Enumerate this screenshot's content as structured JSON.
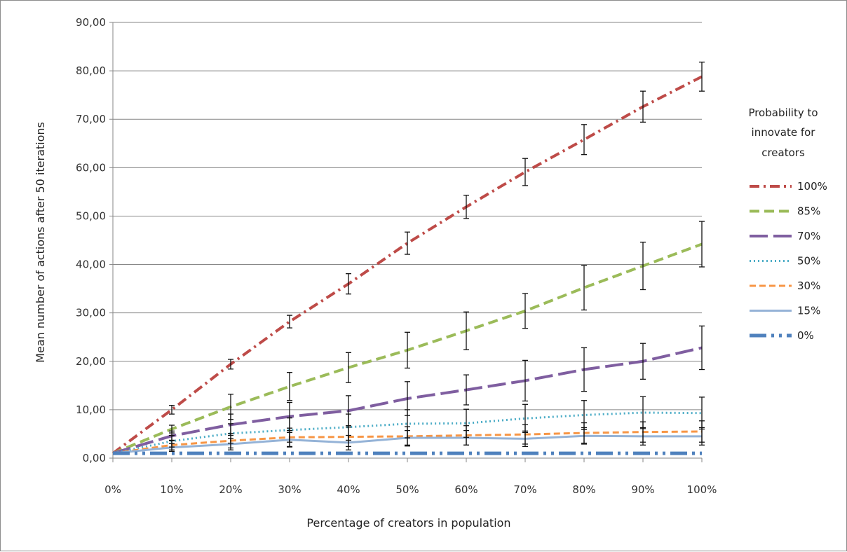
{
  "chart_data": {
    "type": "line",
    "title": "",
    "xlabel": "Percentage of creators in population",
    "ylabel": "Mean number of  actions after  50 iterations",
    "categories": [
      "0%",
      "10%",
      "20%",
      "30%",
      "40%",
      "50%",
      "60%",
      "70%",
      "80%",
      "90%",
      "100%"
    ],
    "ylim": [
      0,
      90
    ],
    "yticks": [
      "0,00",
      "10,00",
      "20,00",
      "30,00",
      "40,00",
      "50,00",
      "60,00",
      "70,00",
      "80,00",
      "90,00"
    ],
    "grid": "horizontal",
    "legend": {
      "title_lines": [
        "Probability to",
        "innovate for",
        "creators"
      ],
      "placement": "right"
    },
    "series": [
      {
        "name": "100%",
        "color": "#be4b48",
        "dash": "14,6,3,6",
        "width": 4,
        "values": [
          1.0,
          10.0,
          19.4,
          28.2,
          36.0,
          44.4,
          51.9,
          59.1,
          65.8,
          72.6,
          78.8
        ],
        "errors": [
          0,
          0.9,
          1.0,
          1.3,
          2.1,
          2.3,
          2.4,
          2.8,
          3.1,
          3.2,
          3.0
        ]
      },
      {
        "name": "85%",
        "color": "#9bbb59",
        "dash": "14,7",
        "width": 4,
        "values": [
          1.0,
          6.0,
          10.6,
          14.8,
          18.7,
          22.3,
          26.3,
          30.4,
          35.2,
          39.7,
          44.2
        ],
        "errors": [
          0,
          0.8,
          2.6,
          2.9,
          3.1,
          3.7,
          3.9,
          3.6,
          4.6,
          4.9,
          4.7
        ]
      },
      {
        "name": "70%",
        "color": "#7f5ea0",
        "dash": "26,8",
        "width": 4,
        "values": [
          1.0,
          4.6,
          6.9,
          8.6,
          9.8,
          12.3,
          14.1,
          16.0,
          18.3,
          20.0,
          22.8
        ],
        "errors": [
          0,
          1.0,
          2.2,
          2.9,
          3.1,
          3.5,
          3.1,
          4.2,
          4.5,
          3.7,
          4.5
        ]
      },
      {
        "name": "50%",
        "color": "#4bacc6",
        "dash": "2,4",
        "width": 3,
        "values": [
          1.0,
          3.5,
          5.1,
          5.8,
          6.4,
          7.1,
          7.2,
          8.2,
          8.9,
          9.4,
          9.3
        ],
        "errors": [
          0,
          1.2,
          2.0,
          2.5,
          2.7,
          2.9,
          2.9,
          2.9,
          3.0,
          3.3,
          3.3
        ]
      },
      {
        "name": "30%",
        "color": "#f79646",
        "dash": "9,5",
        "width": 3,
        "values": [
          1.0,
          2.7,
          3.6,
          4.3,
          4.4,
          4.5,
          4.7,
          4.9,
          5.2,
          5.4,
          5.5
        ],
        "errors": [
          0,
          1.0,
          1.5,
          1.9,
          2.0,
          2.0,
          2.0,
          2.0,
          2.1,
          2.1,
          2.2
        ]
      },
      {
        "name": "15%",
        "color": "#95b3d7",
        "dash": "",
        "width": 3,
        "values": [
          1.0,
          2.2,
          2.9,
          3.8,
          3.2,
          4.2,
          4.2,
          4.0,
          4.6,
          4.5,
          4.5
        ],
        "errors": [
          0,
          0.8,
          1.2,
          1.5,
          1.5,
          1.5,
          1.5,
          1.6,
          1.7,
          1.8,
          1.8
        ]
      },
      {
        "name": "0%",
        "color": "#4f81bd",
        "dash": "24,7,4,7,4,7",
        "width": 5,
        "values": [
          1.0,
          1.0,
          1.0,
          1.0,
          1.0,
          1.0,
          1.0,
          1.0,
          1.0,
          1.0,
          1.0
        ],
        "errors": [
          0,
          0,
          0,
          0,
          0,
          0,
          0,
          0,
          0,
          0,
          0
        ]
      }
    ]
  }
}
